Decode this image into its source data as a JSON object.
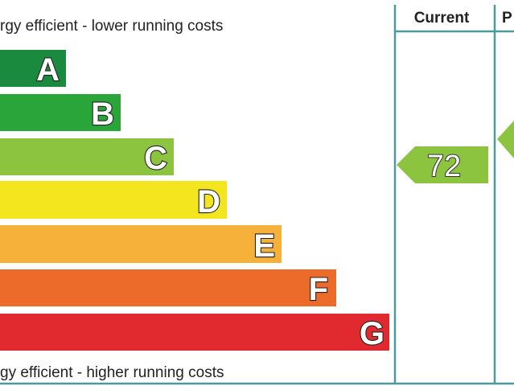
{
  "header": {
    "top_caption": "rgy efficient - lower running costs",
    "bottom_caption": "gy efficient - higher running costs",
    "current": "Current",
    "potential": "P"
  },
  "bands": [
    "A",
    "B",
    "C",
    "D",
    "E",
    "F",
    "G"
  ],
  "current_rating": "72"
}
